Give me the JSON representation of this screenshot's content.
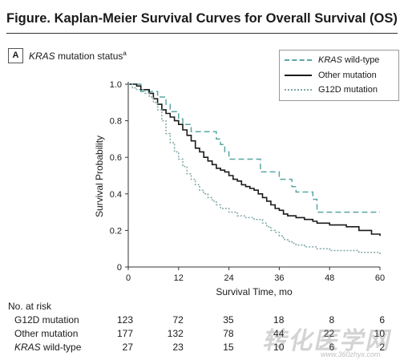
{
  "figure_title": "Figure. Kaplan-Meier Survival Curves for Overall Survival (OS)",
  "panel": {
    "label": "A",
    "title_italic": "KRAS",
    "title_rest": " mutation status",
    "title_sup": "a"
  },
  "chart_data": {
    "type": "line",
    "xlabel": "Survival Time, mo",
    "ylabel": "Survival Probability",
    "xlim": [
      0,
      60
    ],
    "ylim": [
      0,
      1.0
    ],
    "xticks": [
      0,
      12,
      24,
      36,
      48,
      60
    ],
    "xtick_labels": [
      "0",
      "12",
      "24",
      "36",
      "48",
      "60"
    ],
    "yticks": [
      0,
      0.2,
      0.4,
      0.6,
      0.8,
      1.0
    ],
    "ytick_labels": [
      "0",
      "0.2",
      "0.4",
      "0.6",
      "0.8",
      "1.0"
    ],
    "legend_position": "top-right",
    "series": [
      {
        "name": "KRAS wild-type",
        "name_italic_part": "KRAS",
        "name_rest": " wild-type",
        "color": "#5aa6a3",
        "dash": "7,4",
        "points": [
          [
            0,
            1.0
          ],
          [
            2,
            1.0
          ],
          [
            3,
            0.96
          ],
          [
            6,
            0.96
          ],
          [
            7,
            0.93
          ],
          [
            9,
            0.89
          ],
          [
            10,
            0.85
          ],
          [
            12,
            0.81
          ],
          [
            13,
            0.78
          ],
          [
            14,
            0.78
          ],
          [
            15,
            0.74
          ],
          [
            16,
            0.74
          ],
          [
            17,
            0.74
          ],
          [
            20,
            0.74
          ],
          [
            21,
            0.7
          ],
          [
            22,
            0.67
          ],
          [
            23,
            0.63
          ],
          [
            24,
            0.59
          ],
          [
            31,
            0.59
          ],
          [
            31.5,
            0.52
          ],
          [
            35,
            0.52
          ],
          [
            36,
            0.48
          ],
          [
            39,
            0.44
          ],
          [
            40,
            0.41
          ],
          [
            44,
            0.37
          ],
          [
            45,
            0.3
          ],
          [
            60,
            0.3
          ]
        ]
      },
      {
        "name": "Other mutation",
        "color": "#1a1a1a",
        "dash": "",
        "points": [
          [
            0,
            1.0
          ],
          [
            2,
            0.99
          ],
          [
            3,
            0.97
          ],
          [
            5,
            0.95
          ],
          [
            6,
            0.92
          ],
          [
            7,
            0.89
          ],
          [
            8,
            0.86
          ],
          [
            9,
            0.84
          ],
          [
            10,
            0.82
          ],
          [
            11,
            0.8
          ],
          [
            12,
            0.78
          ],
          [
            13,
            0.75
          ],
          [
            14,
            0.72
          ],
          [
            15,
            0.69
          ],
          [
            16,
            0.65
          ],
          [
            17,
            0.63
          ],
          [
            18,
            0.6
          ],
          [
            19,
            0.58
          ],
          [
            20,
            0.56
          ],
          [
            21,
            0.54
          ],
          [
            22,
            0.53
          ],
          [
            23,
            0.52
          ],
          [
            24,
            0.5
          ],
          [
            25,
            0.48
          ],
          [
            26,
            0.47
          ],
          [
            27,
            0.45
          ],
          [
            28,
            0.44
          ],
          [
            29,
            0.43
          ],
          [
            30,
            0.42
          ],
          [
            31,
            0.4
          ],
          [
            32,
            0.38
          ],
          [
            33,
            0.36
          ],
          [
            34,
            0.34
          ],
          [
            35,
            0.32
          ],
          [
            36,
            0.31
          ],
          [
            37,
            0.29
          ],
          [
            38,
            0.28
          ],
          [
            40,
            0.27
          ],
          [
            42,
            0.26
          ],
          [
            44,
            0.25
          ],
          [
            45,
            0.24
          ],
          [
            48,
            0.23
          ],
          [
            52,
            0.22
          ],
          [
            55,
            0.2
          ],
          [
            58,
            0.18
          ],
          [
            60,
            0.17
          ]
        ]
      },
      {
        "name": "G12D mutation",
        "color": "#7fa8a6",
        "dash": "2,2",
        "points": [
          [
            0,
            1.0
          ],
          [
            1,
            0.98
          ],
          [
            2,
            0.97
          ],
          [
            4,
            0.95
          ],
          [
            5,
            0.93
          ],
          [
            6,
            0.9
          ],
          [
            7,
            0.86
          ],
          [
            8,
            0.8
          ],
          [
            9,
            0.73
          ],
          [
            10,
            0.68
          ],
          [
            11,
            0.63
          ],
          [
            12,
            0.59
          ],
          [
            13,
            0.55
          ],
          [
            14,
            0.51
          ],
          [
            15,
            0.48
          ],
          [
            16,
            0.45
          ],
          [
            17,
            0.42
          ],
          [
            18,
            0.4
          ],
          [
            19,
            0.38
          ],
          [
            20,
            0.36
          ],
          [
            21,
            0.34
          ],
          [
            22,
            0.32
          ],
          [
            24,
            0.3
          ],
          [
            26,
            0.28
          ],
          [
            28,
            0.27
          ],
          [
            30,
            0.26
          ],
          [
            32,
            0.24
          ],
          [
            33,
            0.22
          ],
          [
            34,
            0.2
          ],
          [
            35,
            0.19
          ],
          [
            36,
            0.17
          ],
          [
            37,
            0.15
          ],
          [
            38,
            0.14
          ],
          [
            39,
            0.13
          ],
          [
            40,
            0.12
          ],
          [
            42,
            0.11
          ],
          [
            45,
            0.1
          ],
          [
            48,
            0.09
          ],
          [
            52,
            0.09
          ],
          [
            55,
            0.08
          ],
          [
            60,
            0.07
          ]
        ]
      }
    ]
  },
  "at_risk": {
    "heading": "No. at risk",
    "rows": [
      {
        "label": "G12D mutation",
        "values": [
          "123",
          "72",
          "35",
          "18",
          "8",
          "6"
        ]
      },
      {
        "label": "Other mutation",
        "values": [
          "177",
          "132",
          "78",
          "44",
          "22",
          "10"
        ]
      },
      {
        "label_italic": "KRAS",
        "label_rest": " wild-type",
        "values": [
          "27",
          "23",
          "15",
          "10",
          "6",
          "2"
        ]
      }
    ]
  },
  "watermark": {
    "main": "转化医学网",
    "sub": "www.360zhyx.com"
  }
}
